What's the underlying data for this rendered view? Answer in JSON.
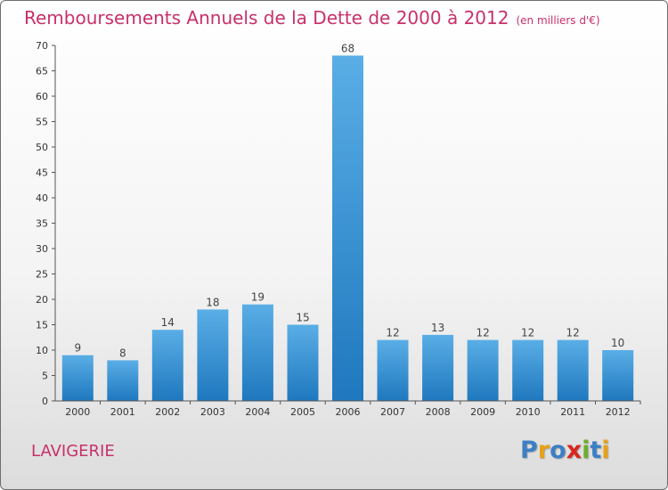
{
  "header": {
    "title": "Remboursements Annuels de la Dette de 2000 à 2012",
    "unit": "(en milliers d'€)"
  },
  "footer": {
    "city": "LAVIGERIE",
    "logo": "Proxiti",
    "logo_letters": [
      {
        "ch": "P",
        "color": "#3d7fc4"
      },
      {
        "ch": "r",
        "color": "#e6a218"
      },
      {
        "ch": "o",
        "color": "#3d7fc4"
      },
      {
        "ch": "x",
        "color": "#d8281e"
      },
      {
        "ch": "i",
        "color": "#6cae2e"
      },
      {
        "ch": "t",
        "color": "#3d7fc4"
      },
      {
        "ch": "i",
        "color": "#e6a218"
      }
    ]
  },
  "colors": {
    "accent": "#c8306a",
    "bar_light": "#5aaee6",
    "bar_dark": "#1f78be"
  },
  "chart_data": {
    "type": "bar",
    "categories": [
      "2000",
      "2001",
      "2002",
      "2003",
      "2004",
      "2005",
      "2006",
      "2007",
      "2008",
      "2009",
      "2010",
      "2011",
      "2012"
    ],
    "values": [
      9,
      8,
      14,
      18,
      19,
      15,
      68,
      12,
      13,
      12,
      12,
      12,
      10
    ],
    "ylim": [
      0,
      70
    ],
    "yticks": [
      0,
      5,
      10,
      15,
      20,
      25,
      30,
      35,
      40,
      45,
      50,
      55,
      60,
      65,
      70
    ],
    "grid": false,
    "legend": "none"
  }
}
